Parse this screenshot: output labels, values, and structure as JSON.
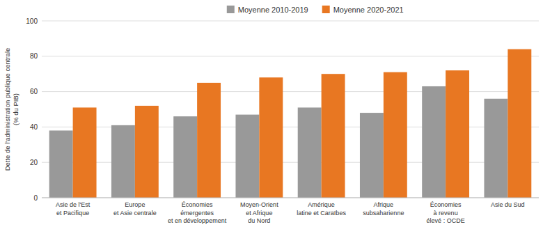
{
  "chart_data": {
    "type": "bar",
    "categories": [
      "Asie de l'Est\net Pacifique",
      "Europe\net Asie centrale",
      "Économies\némergentes\net en développement",
      "Moyen-Orient\net Afrique\ndu Nord",
      "Amérique\nlatine et Caraïbes",
      "Afrique\nsubsaharienne",
      "Économies\nà revenu\nélevé : OCDE",
      "Asie du Sud"
    ],
    "series": [
      {
        "name": "Moyenne 2010-2019",
        "color": "#999999",
        "values": [
          38,
          41,
          46,
          47,
          51,
          48,
          63,
          56
        ]
      },
      {
        "name": "Moyenne 2020-2021",
        "color": "#E87722",
        "values": [
          51,
          52,
          65,
          68,
          70,
          71,
          72,
          84
        ]
      }
    ],
    "ylabel": "Dette de l'administration publique centrale\n(% du PIB)",
    "ylim": [
      0,
      100
    ],
    "yticks": [
      0,
      20,
      40,
      60,
      80,
      100
    ],
    "grid": true,
    "legend": "top"
  }
}
